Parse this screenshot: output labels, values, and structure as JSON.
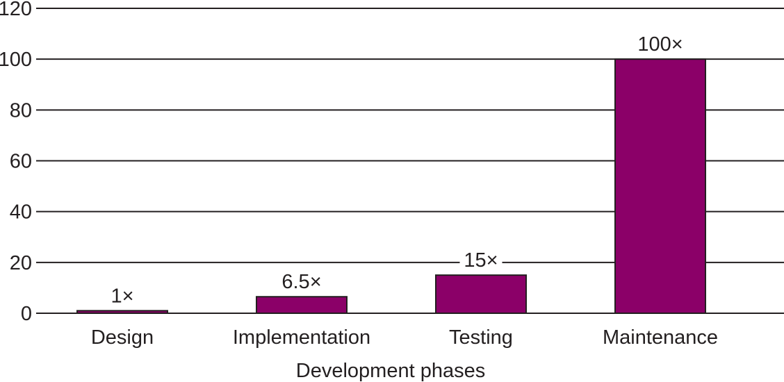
{
  "chart_data": {
    "type": "bar",
    "categories": [
      "Design",
      "Implementation",
      "Testing",
      "Maintenance"
    ],
    "values": [
      1,
      6.5,
      15,
      100
    ],
    "data_labels": [
      "1×",
      "6.5×",
      "15×",
      "100×"
    ],
    "title": "",
    "xlabel": "Development phases",
    "ylabel": "",
    "ylim": [
      0,
      120
    ],
    "yticks": [
      0,
      20,
      40,
      60,
      80,
      100,
      120
    ],
    "grid": true,
    "legend": "none",
    "colors": {
      "bar": "#8b0068",
      "bar_outline": "#231f20",
      "grid": "#231f20",
      "text": "#231f20",
      "background": "#ffffff"
    }
  }
}
